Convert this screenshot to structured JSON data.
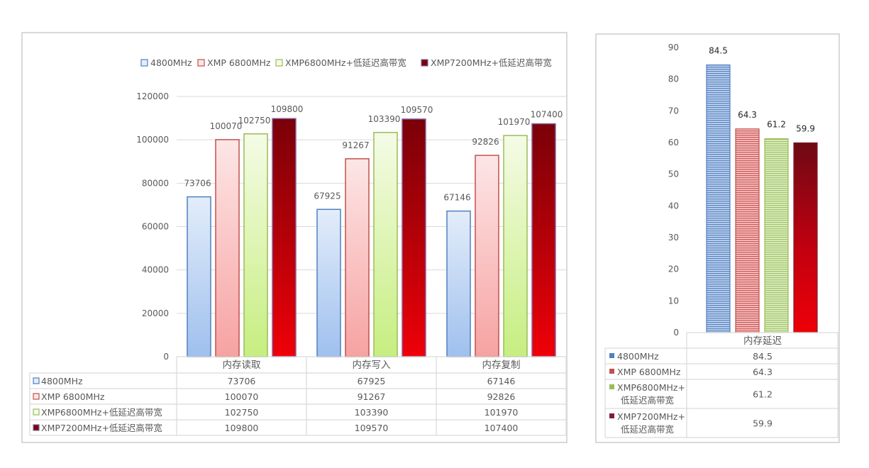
{
  "colors": {
    "s1": "#4f81bd",
    "s2": "#c0504d",
    "s3": "#9bbb59",
    "s4": "#8064a2",
    "grid": "#d9d9d9",
    "text": "#595959"
  },
  "chart_data": [
    {
      "type": "bar",
      "categories": [
        "内存读取",
        "内存写入",
        "内存复制"
      ],
      "series": [
        {
          "name": "4800MHz",
          "values": [
            73706,
            67925,
            67146
          ]
        },
        {
          "name": "XMP 6800MHz",
          "values": [
            100070,
            91267,
            92826
          ]
        },
        {
          "name": "XMP6800MHz+低延迟高带宽",
          "values": [
            102750,
            103390,
            101970
          ]
        },
        {
          "name": "XMP7200MHz+低延迟高带宽",
          "values": [
            109800,
            109570,
            107400
          ]
        }
      ],
      "ylim": [
        0,
        120000
      ],
      "yticks": [
        "0",
        "20000",
        "40000",
        "60000",
        "80000",
        "100000",
        "120000"
      ],
      "data_labels": [
        [
          "73706",
          "67925",
          "67146"
        ],
        [
          "100070",
          "91267",
          "92826"
        ],
        [
          "102750",
          "103390",
          "101970"
        ],
        [
          "109800",
          "109570",
          "107400"
        ]
      ],
      "legend_position": "top",
      "grid": true,
      "data_table": true
    },
    {
      "type": "bar",
      "categories": [
        "内存延迟"
      ],
      "series": [
        {
          "name": "4800MHz",
          "values": [
            84.5
          ]
        },
        {
          "name": "XMP 6800MHz",
          "values": [
            64.3
          ]
        },
        {
          "name": "XMP6800MHz+低延迟高带宽",
          "name_lines": [
            "XMP6800MHz+",
            "低延迟高带宽"
          ],
          "values": [
            61.2
          ]
        },
        {
          "name": "XMP7200MHz+低延迟高带宽",
          "name_lines": [
            "XMP7200MHz+",
            "低延迟高带宽"
          ],
          "values": [
            59.9
          ]
        }
      ],
      "ylim": [
        0,
        90
      ],
      "yticks": [
        "0",
        "10",
        "20",
        "30",
        "40",
        "50",
        "60",
        "70",
        "80",
        "90"
      ],
      "data_labels": [
        [
          "84.5"
        ],
        [
          "64.3"
        ],
        [
          "61.2"
        ],
        [
          "59.9"
        ]
      ],
      "grid": false,
      "data_table": true
    }
  ]
}
